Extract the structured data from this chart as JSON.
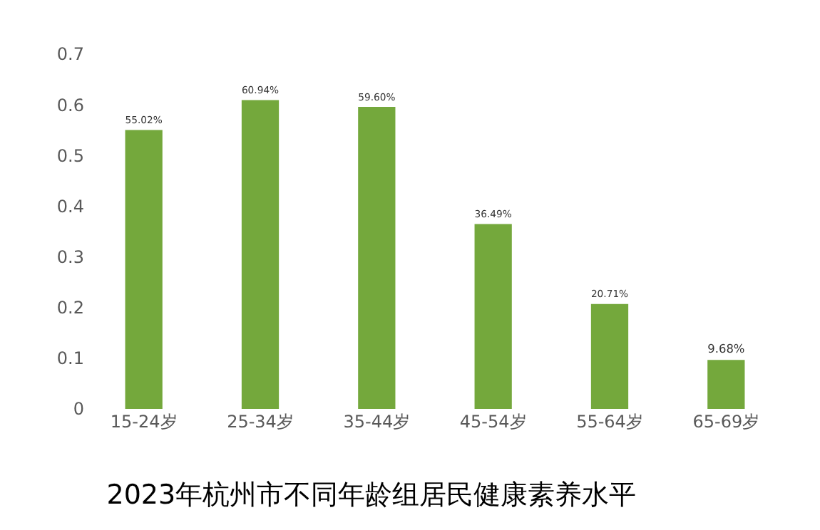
{
  "chart_data": {
    "type": "bar",
    "title": "2023年杭州市不同年龄组居民健康素养水平",
    "categories": [
      "15-24岁",
      "25-34岁",
      "35-44岁",
      "45-54岁",
      "55-64岁",
      "65-69岁"
    ],
    "values": [
      0.5502,
      0.6094,
      0.596,
      0.3649,
      0.2071,
      0.0968
    ],
    "value_labels": [
      "55.02%",
      "60.94%",
      "59.60%",
      "36.49%",
      "20.71%",
      "9.68%"
    ],
    "color": "#74a83c",
    "ylim": [
      0,
      0.7
    ],
    "yticks": [
      0,
      0.1,
      0.2,
      0.3,
      0.4,
      0.5,
      0.6,
      0.7
    ],
    "legend": false
  }
}
